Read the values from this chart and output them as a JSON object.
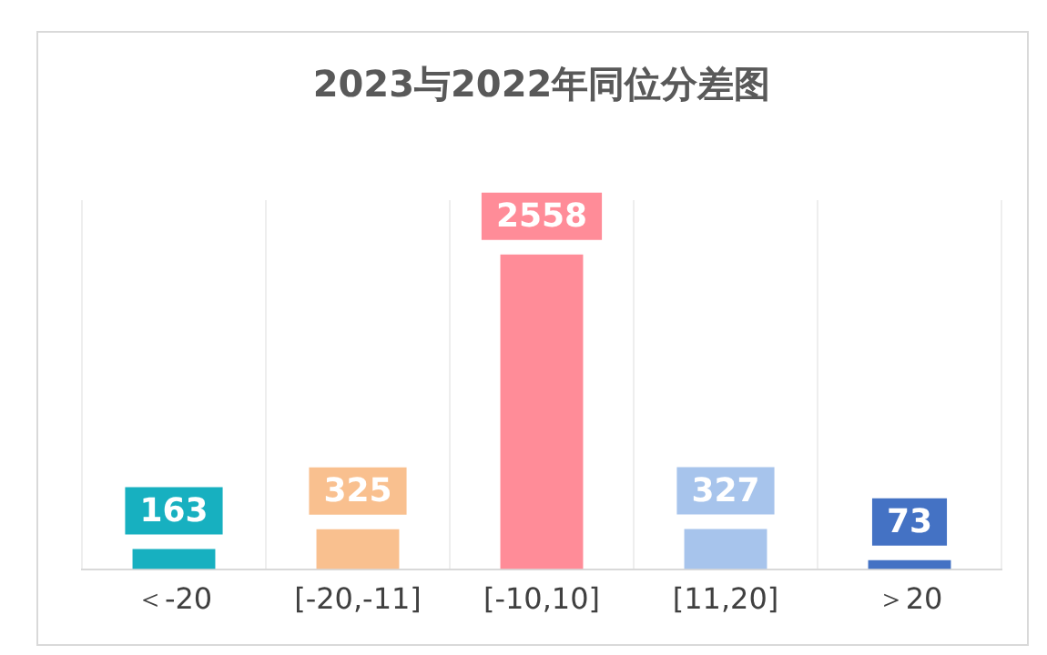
{
  "chart_data": {
    "type": "bar",
    "title": "2023与2022年同位分差图",
    "categories": [
      "＜-20",
      "[-20,-11]",
      "[-10,10]",
      "[11,20]",
      "＞20"
    ],
    "values": [
      163,
      325,
      2558,
      327,
      73
    ],
    "colors": [
      "#17b0c0",
      "#f9c08f",
      "#ff8c98",
      "#a7c4ec",
      "#4472c4"
    ],
    "data_labels": true,
    "grid": "x",
    "legend": false
  }
}
